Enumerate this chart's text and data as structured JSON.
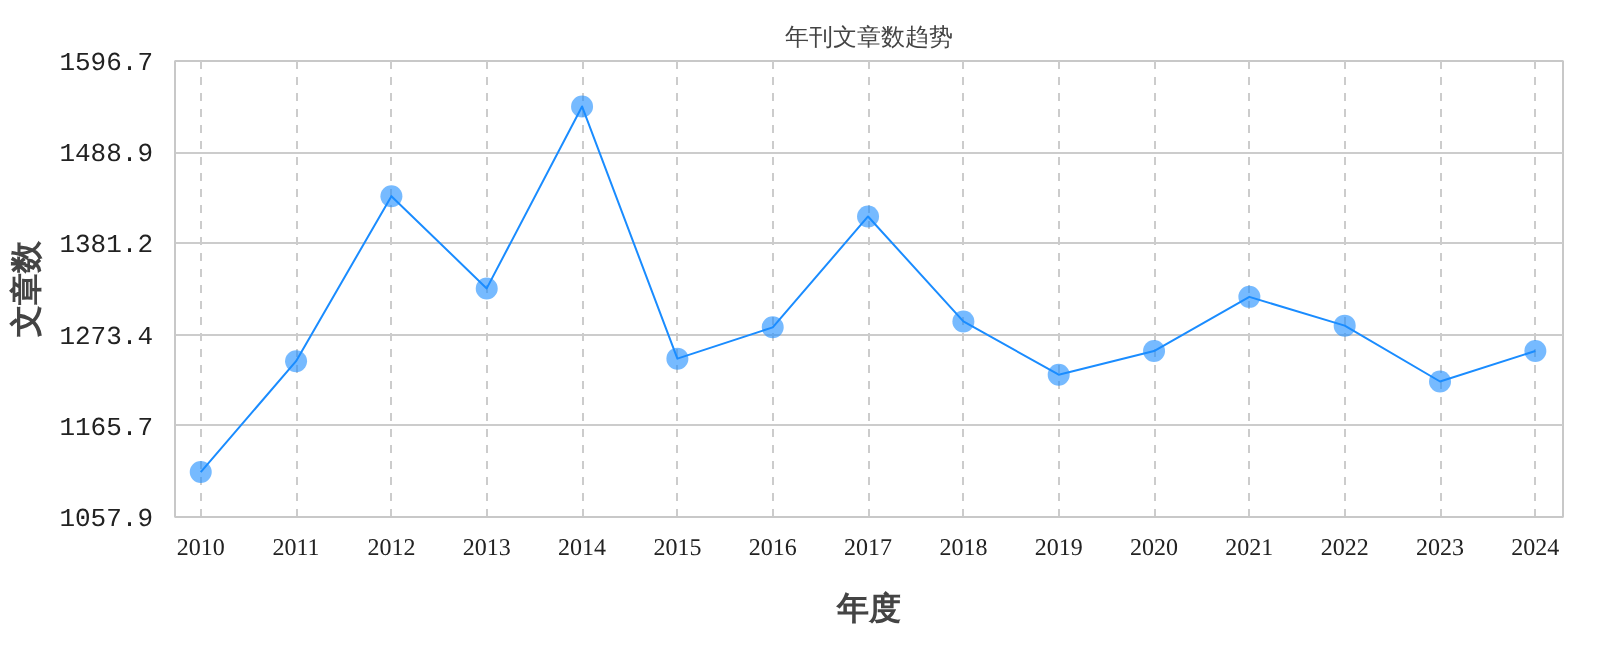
{
  "chart_data": {
    "type": "line",
    "title": "年刊文章数趋势",
    "xlabel": "年度",
    "ylabel": "文章数",
    "categories": [
      "2010",
      "2011",
      "2012",
      "2013",
      "2014",
      "2015",
      "2016",
      "2017",
      "2018",
      "2019",
      "2020",
      "2021",
      "2022",
      "2023",
      "2024"
    ],
    "series": [
      {
        "color": "#1a8cff",
        "values": [
          1111,
          1242,
          1437,
          1328,
          1543,
          1245,
          1282,
          1413,
          1289,
          1226,
          1254,
          1318,
          1284,
          1218,
          1254
        ]
      }
    ],
    "ylim": [
      1057.9,
      1596.7
    ],
    "yticks": [
      1057.9,
      1165.7,
      1273.4,
      1381.2,
      1488.9,
      1596.7
    ],
    "grid": true,
    "marker": "circle",
    "line_style": "solid"
  }
}
